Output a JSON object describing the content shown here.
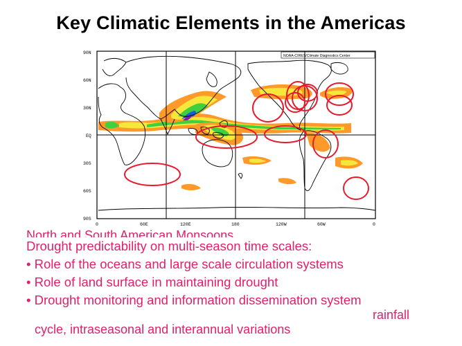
{
  "slide": {
    "title": "Key Climatic Elements in the Americas"
  },
  "map": {
    "credit": "NOAA-CIRES/Climate Diagnostics Center",
    "lat_labels": [
      "90N",
      "60N",
      "30N",
      "EQ",
      "30S",
      "60S",
      "90S"
    ],
    "lon_labels": [
      "0",
      "60E",
      "120E",
      "180",
      "120W",
      "60W",
      "0"
    ],
    "colors": {
      "orange": "#ff9a2a",
      "yellow": "#f5e83a",
      "green": "#3fcf3f",
      "blue": "#1e5bd6",
      "purple": "#8a1aa8",
      "circle": "#e8192c"
    }
  },
  "hidden_text": {
    "line1": "North and South American Monsoons",
    "line2": "cycle, intraseasonal and interannual variations",
    "right_fragment": "rainfall"
  },
  "overlay": {
    "heading": "Drought predictability on multi-season time scales:",
    "bullets": [
      "• Role of the oceans and large scale circulation systems",
      "• Role of land surface in maintaining drought",
      "• Drought monitoring and information dissemination system"
    ]
  }
}
